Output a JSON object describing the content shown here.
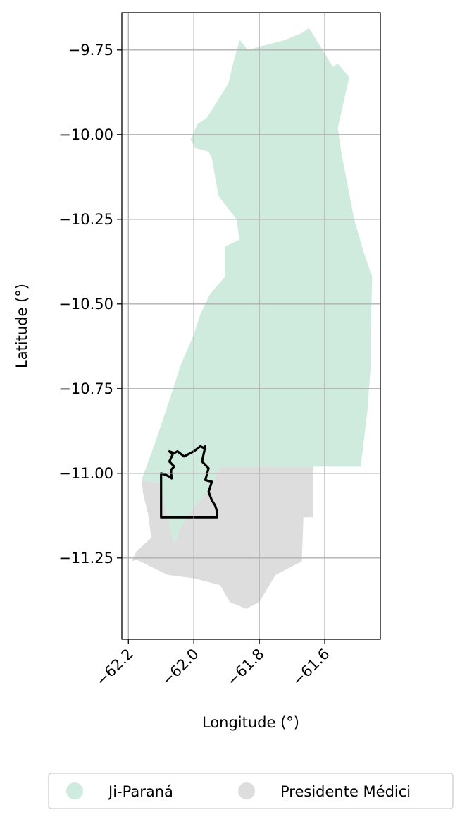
{
  "chart_data": {
    "type": "map",
    "xlabel": "Longitude (°)",
    "ylabel": "Latitude (°)",
    "xlim": [
      -62.22,
      -61.43
    ],
    "ylim": [
      -11.49,
      -9.64
    ],
    "xticks": [
      -62.2,
      -62.0,
      -61.8,
      -61.6
    ],
    "xtick_labels": [
      "−62.2",
      "−62.0",
      "−61.8",
      "−61.6"
    ],
    "yticks": [
      -9.75,
      -10.0,
      -10.25,
      -10.5,
      -10.75,
      -11.0,
      -11.25
    ],
    "ytick_labels": [
      "−9.75",
      "−10.00",
      "−10.25",
      "−10.50",
      "−10.75",
      "−11.00",
      "−11.25"
    ],
    "grid": true,
    "legend_position": "bottom",
    "regions": [
      {
        "name": "Ji-Paraná",
        "color": "#cfebdd",
        "polygon": [
          [
            -61.648,
            -9.685
          ],
          [
            -61.61,
            -9.745
          ],
          [
            -61.575,
            -9.8
          ],
          [
            -61.56,
            -9.79
          ],
          [
            -61.525,
            -9.83
          ],
          [
            -61.56,
            -9.98
          ],
          [
            -61.55,
            -10.05
          ],
          [
            -61.51,
            -10.25
          ],
          [
            -61.48,
            -10.35
          ],
          [
            -61.455,
            -10.42
          ],
          [
            -61.46,
            -10.6
          ],
          [
            -61.46,
            -10.69
          ],
          [
            -61.47,
            -10.82
          ],
          [
            -61.48,
            -10.9
          ],
          [
            -61.49,
            -10.98
          ],
          [
            -61.63,
            -10.98
          ],
          [
            -61.84,
            -10.98
          ],
          [
            -61.92,
            -10.98
          ],
          [
            -61.95,
            -11.05
          ],
          [
            -62.0,
            -11.1
          ],
          [
            -62.04,
            -11.16
          ],
          [
            -62.06,
            -11.21
          ],
          [
            -62.075,
            -11.15
          ],
          [
            -62.105,
            -11.03
          ],
          [
            -62.16,
            -11.02
          ],
          [
            -62.115,
            -10.9
          ],
          [
            -62.08,
            -10.8
          ],
          [
            -62.04,
            -10.68
          ],
          [
            -62.0,
            -10.59
          ],
          [
            -61.98,
            -10.53
          ],
          [
            -61.95,
            -10.47
          ],
          [
            -61.905,
            -10.42
          ],
          [
            -61.905,
            -10.33
          ],
          [
            -61.86,
            -10.31
          ],
          [
            -61.87,
            -10.25
          ],
          [
            -61.925,
            -10.18
          ],
          [
            -61.945,
            -10.07
          ],
          [
            -61.955,
            -10.05
          ],
          [
            -61.995,
            -10.04
          ],
          [
            -62.01,
            -10.015
          ],
          [
            -61.99,
            -9.97
          ],
          [
            -61.96,
            -9.95
          ],
          [
            -61.895,
            -9.85
          ],
          [
            -61.88,
            -9.79
          ],
          [
            -61.86,
            -9.72
          ],
          [
            -61.835,
            -9.75
          ],
          [
            -61.72,
            -9.72
          ],
          [
            -61.67,
            -9.7
          ]
        ]
      },
      {
        "name": "Presidente Médici",
        "color": "#dddddd",
        "polygon": [
          [
            -62.175,
            -11.255
          ],
          [
            -62.08,
            -11.3
          ],
          [
            -62.0,
            -11.31
          ],
          [
            -61.96,
            -11.32
          ],
          [
            -61.92,
            -11.33
          ],
          [
            -61.89,
            -11.38
          ],
          [
            -61.84,
            -11.4
          ],
          [
            -61.8,
            -11.38
          ],
          [
            -61.75,
            -11.3
          ],
          [
            -61.67,
            -11.26
          ],
          [
            -61.665,
            -11.13
          ],
          [
            -61.635,
            -11.13
          ],
          [
            -61.635,
            -10.98
          ],
          [
            -61.92,
            -10.98
          ],
          [
            -61.95,
            -11.05
          ],
          [
            -62.0,
            -11.1
          ],
          [
            -62.04,
            -11.16
          ],
          [
            -62.06,
            -11.21
          ],
          [
            -62.075,
            -11.15
          ],
          [
            -62.105,
            -11.03
          ],
          [
            -62.16,
            -11.02
          ],
          [
            -62.155,
            -11.06
          ],
          [
            -62.14,
            -11.12
          ],
          [
            -62.13,
            -11.19
          ],
          [
            -62.175,
            -11.23
          ],
          [
            -62.19,
            -11.26
          ]
        ]
      }
    ],
    "outline": {
      "color": "#000000",
      "polygon": [
        [
          -62.1,
          -11.0
        ],
        [
          -62.085,
          -11.005
        ],
        [
          -62.075,
          -11.01
        ],
        [
          -62.068,
          -11.015
        ],
        [
          -62.07,
          -10.99
        ],
        [
          -62.06,
          -10.98
        ],
        [
          -62.075,
          -10.965
        ],
        [
          -62.065,
          -10.945
        ],
        [
          -62.075,
          -10.935
        ],
        [
          -62.06,
          -10.94
        ],
        [
          -62.05,
          -10.935
        ],
        [
          -62.03,
          -10.95
        ],
        [
          -62.0,
          -10.935
        ],
        [
          -61.98,
          -10.92
        ],
        [
          -61.97,
          -10.925
        ],
        [
          -61.965,
          -10.92
        ],
        [
          -61.975,
          -10.965
        ],
        [
          -61.955,
          -10.985
        ],
        [
          -61.965,
          -11.02
        ],
        [
          -61.945,
          -11.025
        ],
        [
          -61.955,
          -11.055
        ],
        [
          -61.945,
          -11.08
        ],
        [
          -61.935,
          -11.095
        ],
        [
          -61.93,
          -11.11
        ],
        [
          -61.93,
          -11.13
        ],
        [
          -62.1,
          -11.13
        ],
        [
          -62.1,
          -11.0
        ]
      ]
    },
    "legend": [
      {
        "label": "Ji-Paraná",
        "color": "#cfebdd"
      },
      {
        "label": "Presidente Médici",
        "color": "#dddddd"
      }
    ]
  }
}
